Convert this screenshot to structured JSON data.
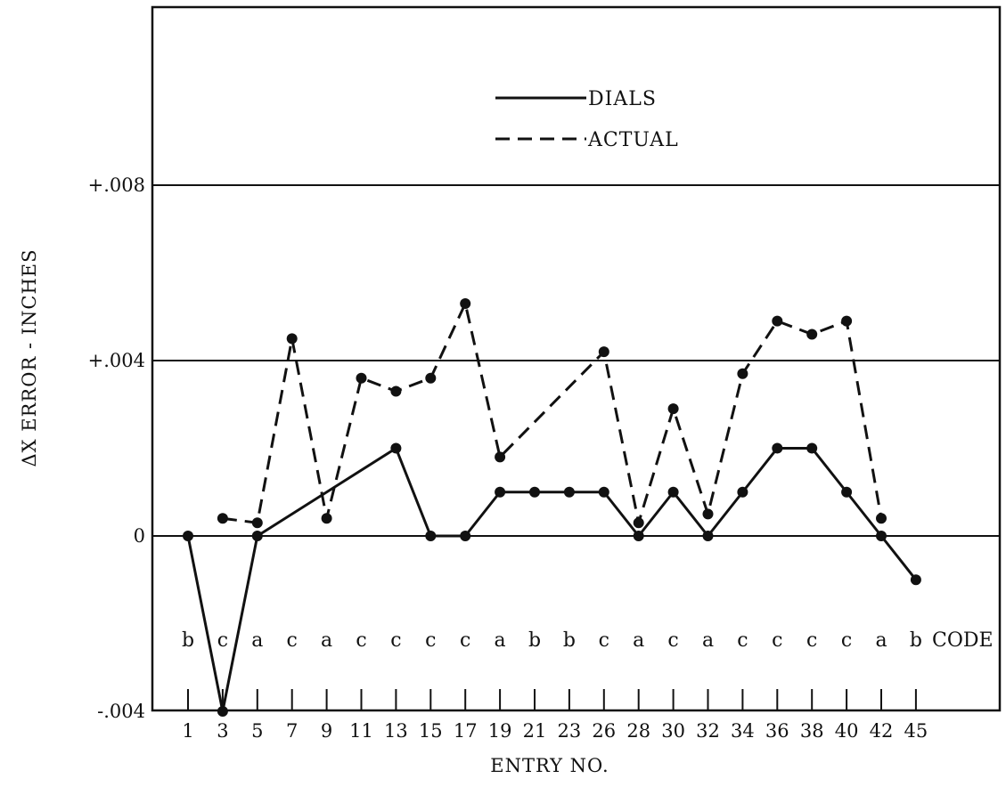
{
  "chart_data": {
    "type": "line",
    "xlabel": "ENTRY NO.",
    "ylabel": "ΔX ERROR - INCHES",
    "ylim": [
      -0.004,
      0.012
    ],
    "grid": "horizontal",
    "legend_position": "top-center",
    "y_ticks": [
      {
        "value": 0.008,
        "label": "+.008"
      },
      {
        "value": 0.004,
        "label": "+.004"
      },
      {
        "value": 0,
        "label": "0"
      },
      {
        "value": -0.004,
        "label": "-.004"
      }
    ],
    "categories": [
      "1",
      "3",
      "5",
      "7",
      "9",
      "11",
      "13",
      "15",
      "17",
      "19",
      "21",
      "23",
      "26",
      "28",
      "30",
      "32",
      "34",
      "36",
      "38",
      "40",
      "42",
      "45"
    ],
    "codes": [
      "b",
      "c",
      "a",
      "c",
      "a",
      "c",
      "c",
      "c",
      "c",
      "a",
      "b",
      "b",
      "c",
      "a",
      "c",
      "a",
      "c",
      "c",
      "c",
      "c",
      "a",
      "b"
    ],
    "code_label": "CODE",
    "series": [
      {
        "name": "DIALS",
        "style": "solid",
        "points": [
          {
            "x": "1",
            "y": 0
          },
          {
            "x": "3",
            "y": -0.004
          },
          {
            "x": "5",
            "y": 0
          },
          {
            "x": "13",
            "y": 0.002
          },
          {
            "x": "15",
            "y": 0
          },
          {
            "x": "17",
            "y": 0
          },
          {
            "x": "19",
            "y": 0.001
          },
          {
            "x": "21",
            "y": 0.001
          },
          {
            "x": "23",
            "y": 0.001
          },
          {
            "x": "26",
            "y": 0.001
          },
          {
            "x": "28",
            "y": 0
          },
          {
            "x": "30",
            "y": 0.001
          },
          {
            "x": "32",
            "y": 0
          },
          {
            "x": "34",
            "y": 0.001
          },
          {
            "x": "36",
            "y": 0.002
          },
          {
            "x": "38",
            "y": 0.002
          },
          {
            "x": "40",
            "y": 0.001
          },
          {
            "x": "42",
            "y": 0
          },
          {
            "x": "45",
            "y": -0.001
          }
        ]
      },
      {
        "name": "ACTUAL",
        "style": "dashed",
        "points": [
          {
            "x": "3",
            "y": 0.0004
          },
          {
            "x": "5",
            "y": 0.0003
          },
          {
            "x": "7",
            "y": 0.0045
          },
          {
            "x": "9",
            "y": 0.0004
          },
          {
            "x": "11",
            "y": 0.0036
          },
          {
            "x": "13",
            "y": 0.0033
          },
          {
            "x": "15",
            "y": 0.0036
          },
          {
            "x": "17",
            "y": 0.0053
          },
          {
            "x": "19",
            "y": 0.0018
          },
          {
            "x": "26",
            "y": 0.0042
          },
          {
            "x": "28",
            "y": 0.0003
          },
          {
            "x": "30",
            "y": 0.0029
          },
          {
            "x": "32",
            "y": 0.0005
          },
          {
            "x": "34",
            "y": 0.0037
          },
          {
            "x": "36",
            "y": 0.0049
          },
          {
            "x": "38",
            "y": 0.0046
          },
          {
            "x": "40",
            "y": 0.0049
          },
          {
            "x": "42",
            "y": 0.0004
          }
        ]
      }
    ]
  }
}
